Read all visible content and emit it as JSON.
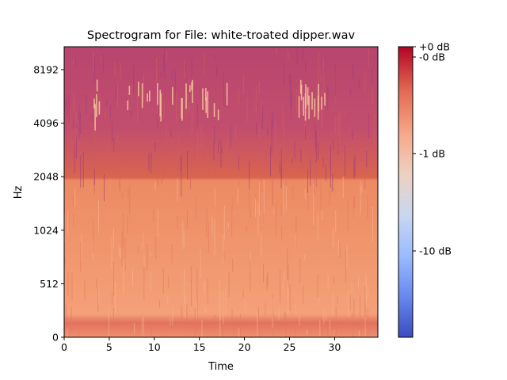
{
  "chart_data": {
    "type": "heatmap",
    "title": "Spectrogram for File: white-troated dipper.wav",
    "xlabel": "Time",
    "ylabel": "Hz",
    "xlim": [
      0,
      34.8
    ],
    "x_ticks": [
      0,
      5,
      10,
      15,
      20,
      25,
      30
    ],
    "y_scale": "symlog",
    "y_ticks": [
      {
        "label": "0",
        "hz": 0
      },
      {
        "label": "512",
        "hz": 512
      },
      {
        "label": "1024",
        "hz": 1024
      },
      {
        "label": "2048",
        "hz": 2048
      },
      {
        "label": "4096",
        "hz": 4096
      },
      {
        "label": "8192",
        "hz": 8192
      }
    ],
    "ylim": [
      0,
      11025
    ],
    "grid": false,
    "colormap": "coolwarm",
    "colormap_colors": [
      "#3b4cc0",
      "#6788ee",
      "#9abbff",
      "#c9d7f0",
      "#edd1c2",
      "#f7a889",
      "#e26952",
      "#b40426"
    ],
    "colorbar": {
      "ticks": [
        "+0 dB",
        "-0 dB",
        "-1 dB",
        "-10 dB"
      ]
    },
    "description_bands": [
      {
        "hz_range": [
          0,
          2048
        ],
        "level": "high",
        "color": "#f4a582"
      },
      {
        "hz_range": [
          2048,
          11025
        ],
        "level": "medium",
        "color": "#c2527a"
      }
    ],
    "song_bursts_seconds": [
      [
        2,
        11
      ],
      [
        12,
        19
      ],
      [
        26,
        29
      ]
    ]
  }
}
